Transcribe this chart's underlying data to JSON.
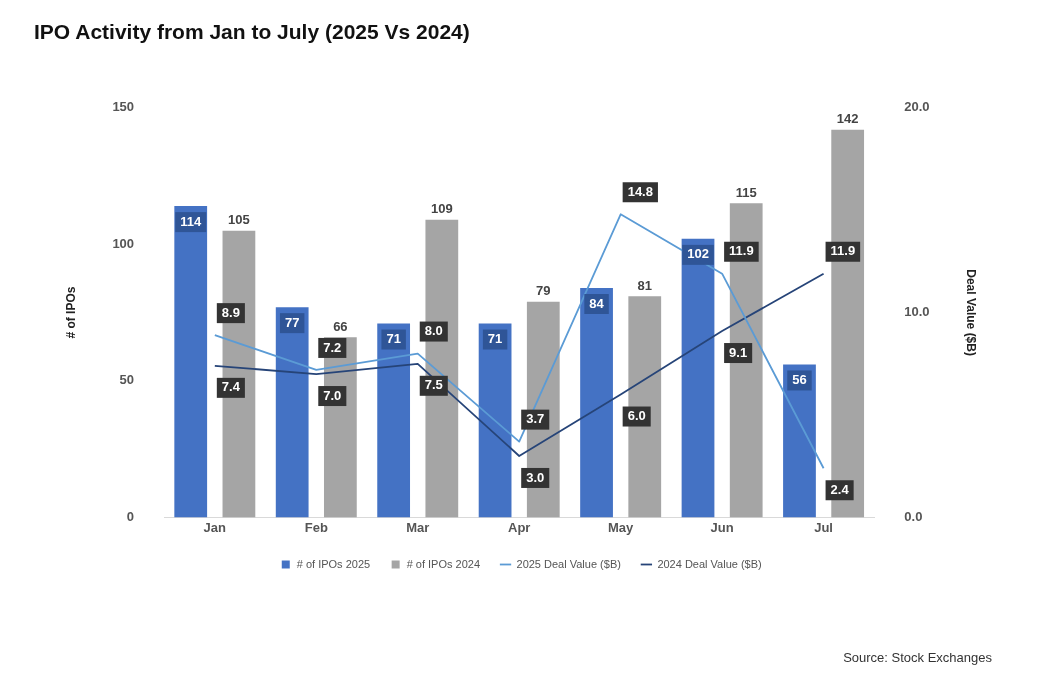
{
  "chart_data": {
    "type": "bar",
    "title": "IPO Activity from Jan to July (2025 Vs 2024)",
    "categories": [
      "Jan",
      "Feb",
      "Mar",
      "Apr",
      "May",
      "Jun",
      "Jul"
    ],
    "ylabel": "# of IPOs",
    "y2label": "Deal Value ($B)",
    "series": [
      {
        "name": "# of IPOs 2025",
        "color": "#4472c4",
        "values": [
          114,
          77,
          71,
          71,
          84,
          102,
          56
        ]
      },
      {
        "name": "# of IPOs 2024",
        "color": "#a5a5a5",
        "values": [
          105,
          66,
          109,
          79,
          81,
          115,
          142
        ]
      },
      {
        "name": "2025 Deal Value ($B)",
        "type": "line",
        "axis": "y2",
        "color": "#5b9bd5",
        "values": [
          8.9,
          7.2,
          8.0,
          3.7,
          14.8,
          11.9,
          2.4
        ],
        "value_labels": [
          "8.9",
          "7.2",
          "8.0",
          "3.7",
          "14.8",
          "11.9",
          "2.4"
        ]
      },
      {
        "name": "2024 Deal Value ($B)",
        "type": "line",
        "axis": "y2",
        "color": "#264478",
        "values": [
          7.4,
          7.0,
          7.5,
          3.0,
          6.0,
          9.1,
          11.9
        ],
        "value_labels": [
          "7.4",
          "7.0",
          "7.5",
          "3.0",
          "6.0",
          "9.1",
          "11.9"
        ]
      }
    ],
    "ylim": [
      0,
      150
    ],
    "yticks": [
      0,
      50,
      100,
      150
    ],
    "y2lim": [
      0,
      20
    ],
    "y2ticks": [
      {
        "value": 0,
        "label": "0.0"
      },
      {
        "value": 10,
        "label": "10.0"
      },
      {
        "value": 20,
        "label": "20.0"
      }
    ],
    "grid": false,
    "legend": "bottom",
    "marker": "none",
    "line_style": "solid",
    "data_labels": true,
    "annotations": [
      "Source: Stock Exchanges"
    ]
  }
}
